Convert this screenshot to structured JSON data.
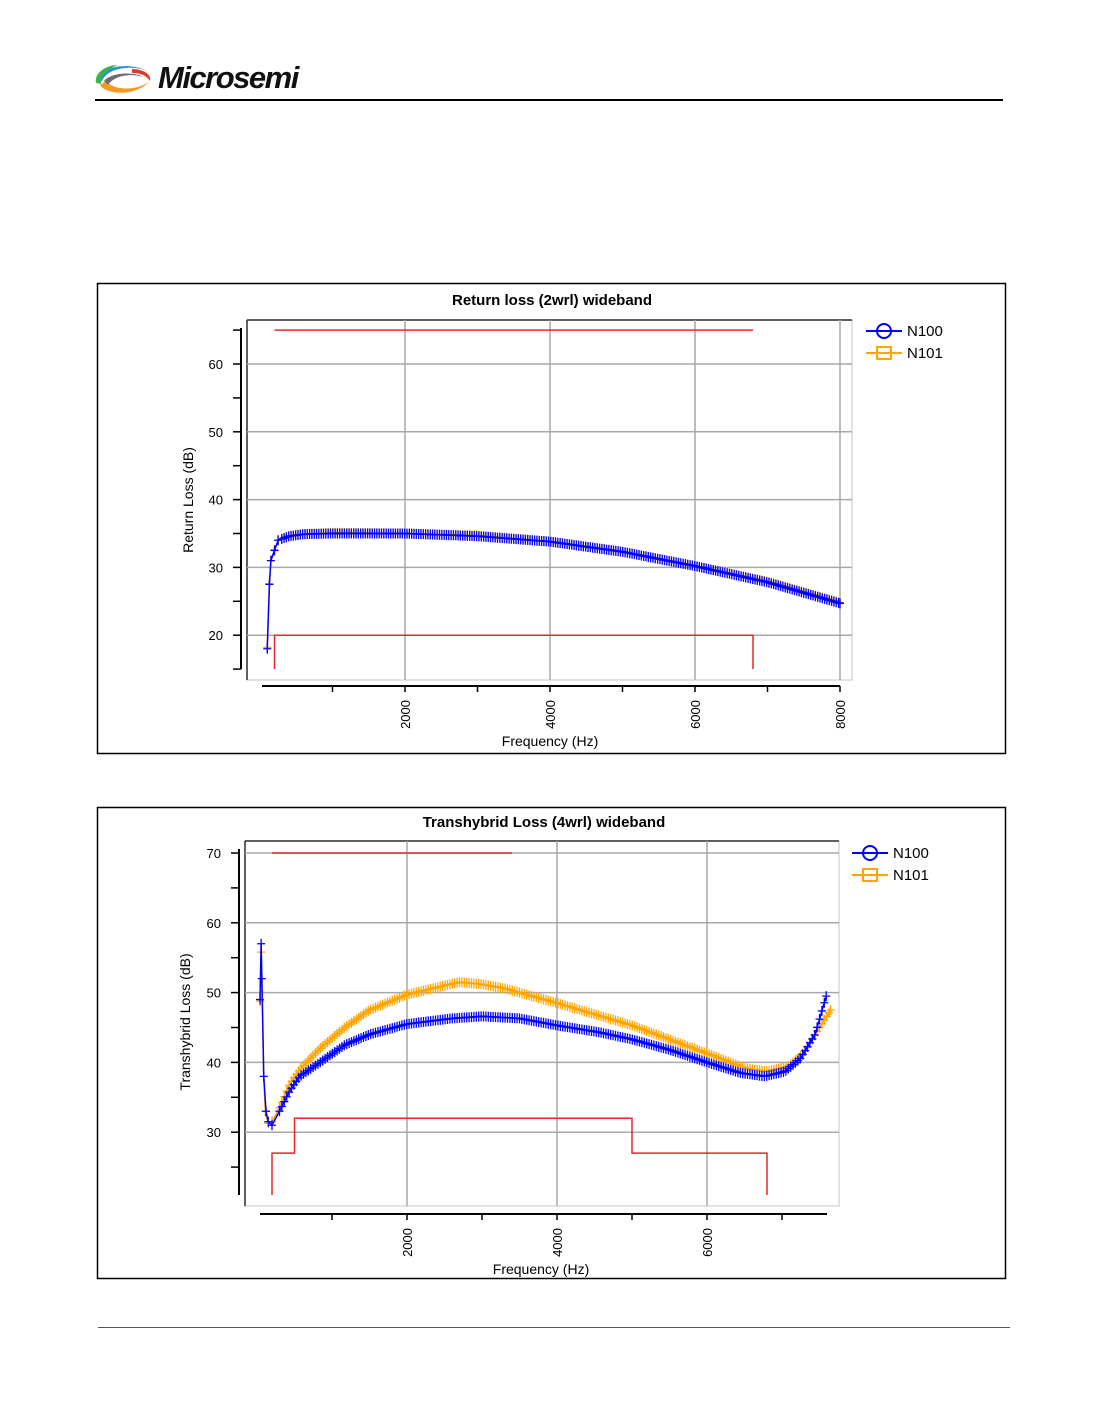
{
  "header": {
    "logo_text": "Microsemi"
  },
  "colors": {
    "n100": "#0000ff",
    "n101": "#ffa500",
    "limit": "#e8262a",
    "grid": "#a8a8a8"
  },
  "chart_data": [
    {
      "type": "line",
      "title": "Return loss (2wrl) wideband",
      "xlabel": "Frequency (Hz)",
      "ylabel": "Return Loss (dB)",
      "xlim": [
        0,
        8000
      ],
      "ylim": [
        15,
        66.5
      ],
      "grid": true,
      "legend_position": "top-right",
      "x_ticks": [
        1000,
        2000,
        3000,
        4000,
        5000,
        6000,
        7000,
        8000
      ],
      "x_tick_labels": [
        "2000",
        "4000",
        "6000",
        "8000"
      ],
      "x_tick_label_values": [
        2000,
        4000,
        6000,
        8000
      ],
      "y_ticks": [
        15,
        20,
        25,
        30,
        35,
        40,
        45,
        50,
        55,
        60,
        65
      ],
      "y_tick_labels": [
        "20",
        "30",
        "40",
        "50",
        "60"
      ],
      "y_tick_label_values": [
        20,
        30,
        40,
        50,
        60
      ],
      "series": [
        {
          "name": "N101",
          "color_key": "n101",
          "marker": "square",
          "x": [
            100,
            130,
            150,
            200,
            250,
            400,
            600,
            1000,
            2000,
            3000,
            4000,
            5000,
            6000,
            7000,
            8000
          ],
          "y": [
            18.2,
            27.6,
            31,
            32.6,
            34,
            34.6,
            34.9,
            35.1,
            35,
            34.7,
            33.8,
            32.3,
            30.2,
            27.9,
            24.8
          ]
        },
        {
          "name": "N100",
          "color_key": "n100",
          "marker": "circle",
          "x": [
            100,
            130,
            150,
            200,
            250,
            400,
            600,
            1000,
            2000,
            3000,
            4000,
            5000,
            6000,
            7000,
            8000
          ],
          "y": [
            18,
            27.5,
            31,
            32.5,
            34,
            34.6,
            34.9,
            35,
            35,
            34.6,
            33.8,
            32.3,
            30.2,
            27.8,
            24.7
          ]
        }
      ],
      "limits": [
        {
          "name": "upper-limit",
          "x": [
            200,
            6800
          ],
          "y": [
            65,
            65
          ]
        },
        {
          "name": "lower-mask",
          "x": [
            200,
            200,
            6800,
            6800
          ],
          "y": [
            15,
            20,
            20,
            15
          ]
        }
      ]
    },
    {
      "type": "line",
      "title": "Transhybrid Loss (4wrl) wideband",
      "xlabel": "Frequency (Hz)",
      "ylabel": "Transhybrid Loss (dB)",
      "xlim": [
        0,
        7600
      ],
      "ylim": [
        19.5,
        71.5
      ],
      "grid": true,
      "legend_position": "top-right",
      "x_ticks": [
        1000,
        2000,
        3000,
        4000,
        5000,
        6000,
        7000
      ],
      "x_tick_labels": [
        "2000",
        "4000",
        "6000"
      ],
      "x_tick_label_values": [
        2000,
        4000,
        6000
      ],
      "y_ticks": [
        25,
        30,
        35,
        40,
        45,
        50,
        55,
        60,
        65,
        70
      ],
      "y_tick_labels": [
        "30",
        "40",
        "50",
        "60",
        "70"
      ],
      "y_tick_label_values": [
        30,
        40,
        50,
        60,
        70
      ],
      "series": [
        {
          "name": "N101",
          "color_key": "n101",
          "marker": "square",
          "x": [
            45,
            55,
            65,
            90,
            110,
            150,
            200,
            300,
            440,
            570,
            840,
            1170,
            1500,
            2000,
            2500,
            2700,
            3000,
            3300,
            4000,
            5000,
            6000,
            6500,
            6800,
            7100,
            7300,
            7500,
            7650
          ],
          "y": [
            48.8,
            55.8,
            52,
            38,
            33,
            31.3,
            31.5,
            33.5,
            37,
            39,
            42,
            45,
            47.5,
            49.7,
            51,
            51.5,
            51.2,
            50.6,
            48.5,
            45.3,
            41.3,
            39.2,
            38.7,
            39.5,
            41.5,
            45,
            47.5
          ]
        },
        {
          "name": "N100",
          "color_key": "n100",
          "marker": "circle",
          "x": [
            40,
            55,
            65,
            90,
            120,
            150,
            200,
            300,
            440,
            570,
            840,
            1170,
            1500,
            2000,
            2600,
            3000,
            3500,
            4000,
            4570,
            5000,
            5500,
            6000,
            6440,
            6770,
            7040,
            7240,
            7440,
            7590
          ],
          "y": [
            49,
            57,
            52,
            38,
            33,
            31.5,
            31,
            33,
            36,
            38,
            40,
            42.5,
            44,
            45.5,
            46.3,
            46.6,
            46.3,
            45.3,
            44.3,
            43.3,
            41.8,
            40,
            38.5,
            38,
            38.7,
            40.5,
            44,
            49.5
          ]
        }
      ],
      "limits": [
        {
          "name": "upper-limit",
          "x": [
            200,
            3400
          ],
          "y": [
            70,
            70
          ]
        },
        {
          "name": "lower-mask",
          "x": [
            200,
            200,
            500,
            500,
            5000,
            5000,
            6800,
            6800
          ],
          "y": [
            21,
            27,
            27,
            32,
            32,
            27,
            27,
            21
          ]
        }
      ]
    }
  ]
}
